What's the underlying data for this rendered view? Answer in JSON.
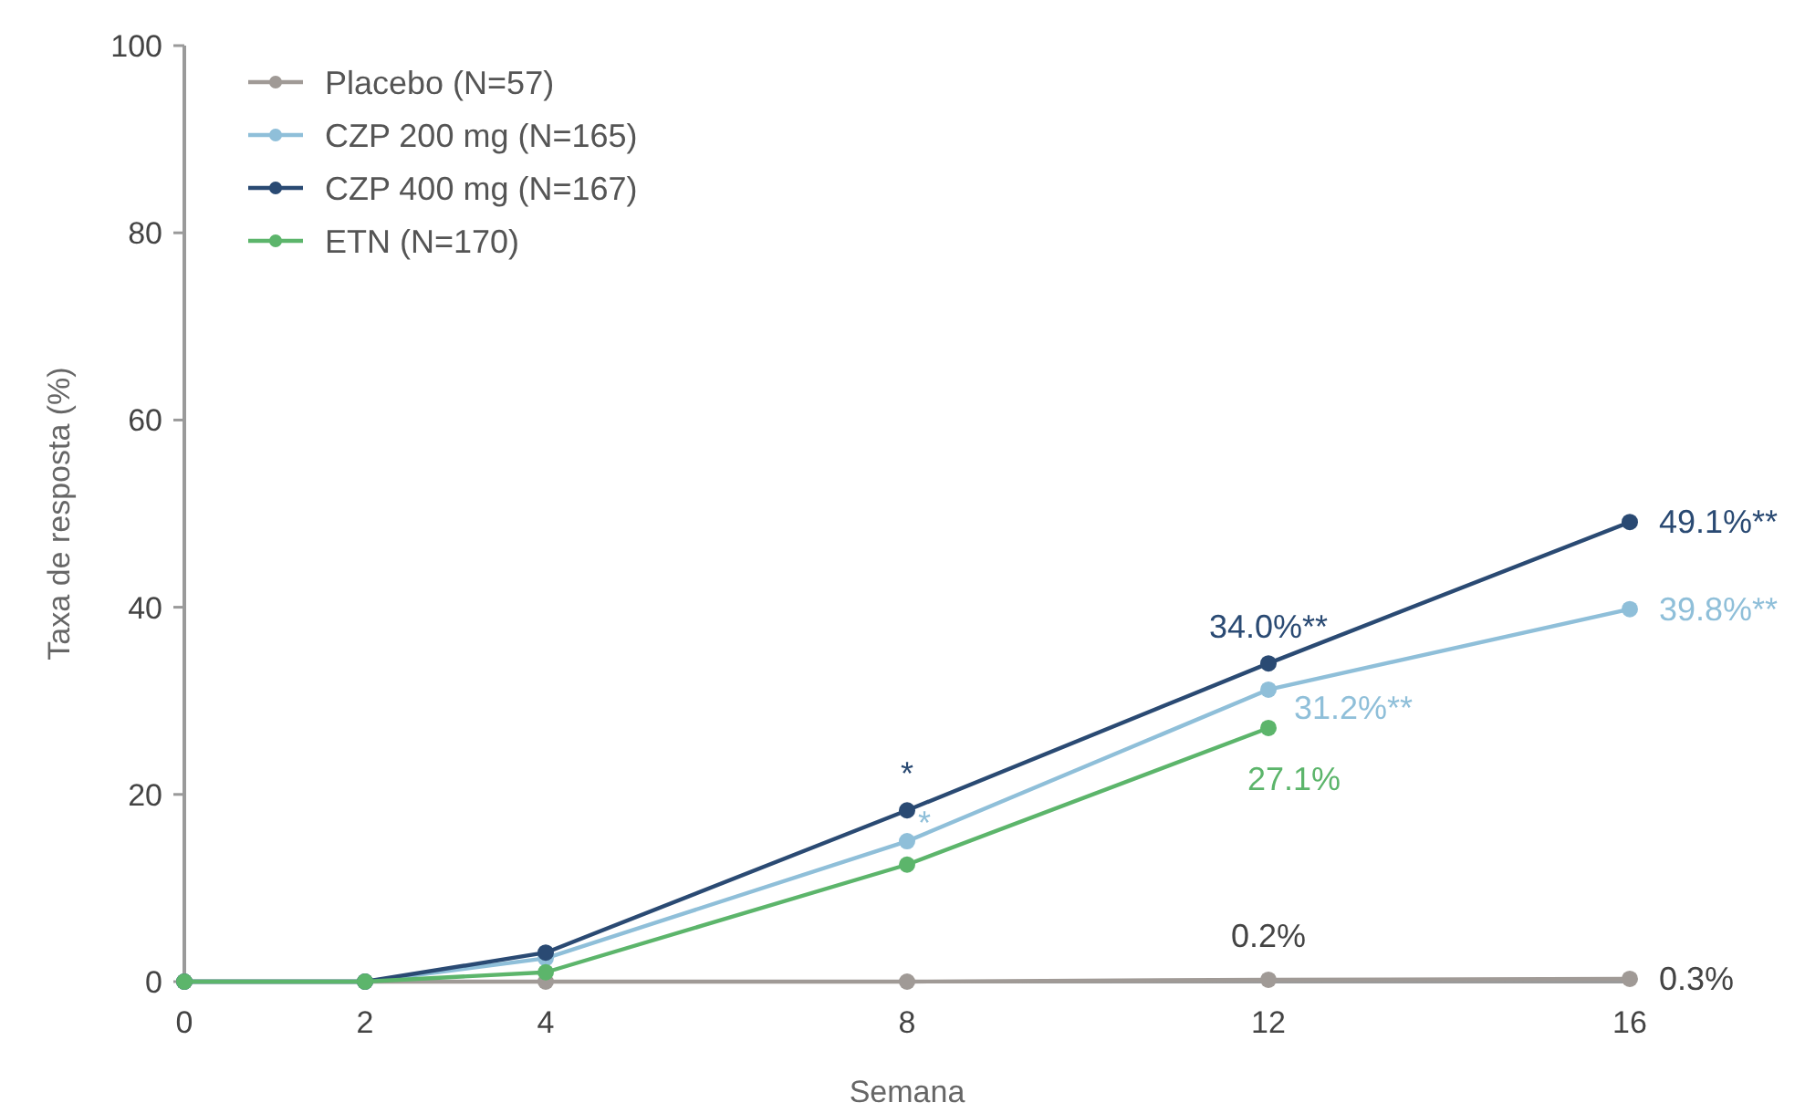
{
  "chart_data": {
    "type": "line",
    "xlabel": "Semana",
    "ylabel": "Taxa de resposta (%)",
    "xlim": [
      0,
      16
    ],
    "xticks": [
      0,
      2,
      4,
      8,
      12,
      16
    ],
    "ylim": [
      0,
      100
    ],
    "yticks": [
      0,
      20,
      40,
      60,
      80,
      100
    ],
    "x": [
      0,
      2,
      4,
      8,
      12,
      16
    ],
    "legend": "top left",
    "marker": "circle",
    "grid": false,
    "series": [
      {
        "name": "Placebo (N=57)",
        "color": "#a09a96",
        "values": [
          0,
          0,
          0,
          0,
          0.2,
          0.3
        ],
        "value_labels": [
          null,
          null,
          null,
          null,
          "0.2%",
          "0.3%"
        ]
      },
      {
        "name": "CZP 200 mg (N=165)",
        "color": "#8fbfd9",
        "values": [
          0,
          0,
          2.5,
          15,
          31.2,
          39.8
        ],
        "value_labels": [
          null,
          null,
          null,
          "*",
          "31.2%**",
          "39.8%**"
        ]
      },
      {
        "name": "CZP 400 mg (N=167)",
        "color": "#2a4a73",
        "values": [
          0,
          0,
          3.1,
          18.3,
          34.0,
          49.1
        ],
        "value_labels": [
          null,
          null,
          null,
          "*",
          "34.0%**",
          "49.1%**"
        ]
      },
      {
        "name": "ETN (N=170)",
        "color": "#5cb56b",
        "values": [
          0,
          0,
          1,
          12.5,
          27.1,
          null
        ],
        "value_labels": [
          null,
          null,
          null,
          null,
          "27.1%",
          null
        ]
      }
    ]
  }
}
